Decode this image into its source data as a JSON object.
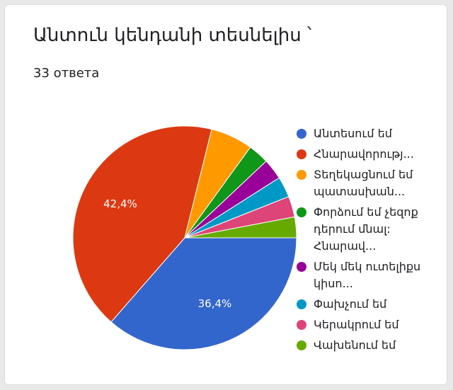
{
  "chart_data": {
    "type": "pie",
    "title": "Անտուն կենդանի տեսնելիս ՝",
    "subtitle": "33 ответа",
    "categories": [
      "Անտեսում եմ",
      "Հնարավորությ...",
      "Տեղեկացնում եմ պատասխան...",
      "Փորձում եմ չեզոք դերում մնալ: Հնարավ...",
      "Մեկ մեկ ուտելիքս կիսո...",
      "Փախչում եմ",
      "Կերակրում եմ",
      "Վախենում եմ"
    ],
    "values": [
      36.4,
      42.4,
      6.1,
      3.0,
      3.0,
      3.0,
      3.0,
      3.0
    ],
    "value_labels": [
      "36,4%",
      "42,4%",
      null,
      null,
      null,
      null,
      null,
      null
    ],
    "colors": [
      "#3366cc",
      "#dc3912",
      "#ff9900",
      "#109618",
      "#990099",
      "#0099c6",
      "#dd4477",
      "#66aa00"
    ],
    "legend": "right"
  }
}
